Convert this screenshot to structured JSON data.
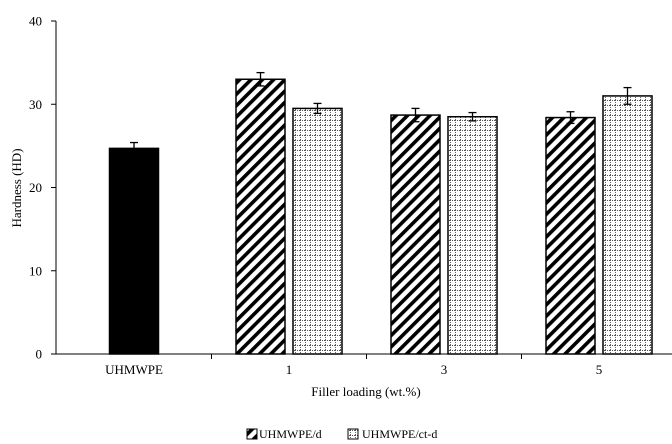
{
  "chart_data": {
    "type": "bar",
    "xlabel": "Filler loading (wt.%)",
    "ylabel": "Hardness (HD)",
    "ylim": [
      0,
      40
    ],
    "yticks": [
      0,
      10,
      20,
      30,
      40
    ],
    "categories": [
      "UHMWPE",
      "1",
      "3",
      "5"
    ],
    "series": [
      {
        "name": "",
        "style": "solid-black",
        "values": [
          24.7,
          null,
          null,
          null
        ],
        "errors": [
          0.7,
          null,
          null,
          null
        ]
      },
      {
        "name": "UHMWPE/d",
        "style": "diagonal-hatch",
        "values": [
          null,
          33.0,
          28.7,
          28.4
        ],
        "errors": [
          null,
          0.8,
          0.8,
          0.7
        ]
      },
      {
        "name": "UHMWPE/ct-d",
        "style": "grid-dots",
        "values": [
          null,
          29.5,
          28.5,
          31.0
        ],
        "errors": [
          null,
          0.6,
          0.5,
          1.0
        ]
      }
    ],
    "legend_position": "bottom-center",
    "grid": false
  },
  "colors": {
    "solid": "#000000",
    "outline": "#000000",
    "background": "#ffffff"
  }
}
